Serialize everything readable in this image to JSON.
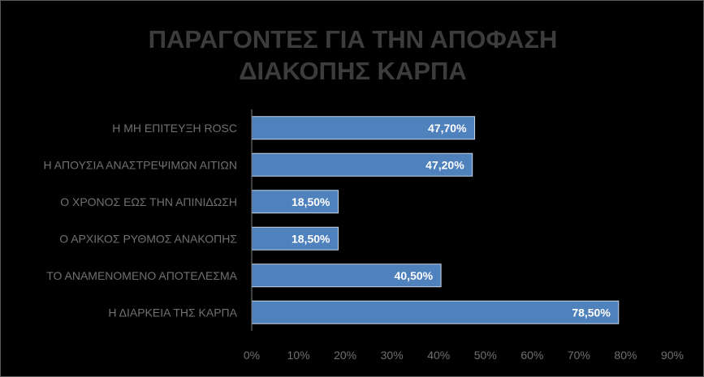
{
  "chart_data": {
    "type": "bar",
    "orientation": "horizontal",
    "title_lines": [
      "ΠΑΡΑΓΟΝΤΕΣ ΓΙΑ ΤΗΝ ΑΠΟΦΑΣΗ",
      "ΔΙΑΚΟΠΗΣ ΚΑΡΠΑ"
    ],
    "categories": [
      "Η ΜΗ ΕΠΙΤΕΥΞΗ ROSC",
      "Η ΑΠΟΥΣΙΑ ΑΝΑΣΤΡΕΨΙΜΩΝ ΑΙΤΙΩΝ",
      "Ο ΧΡΟΝΟΣ ΕΩΣ ΤΗΝ ΑΠΙΝΙΔΩΣΗ",
      "Ο ΑΡΧΙΚΟΣ ΡΥΘΜΟΣ ΑΝΑΚΟΠΗΣ",
      "ΤΟ ΑΝΑΜΕΝΟΜΕΝΟ ΑΠΟΤΕΛΕΣΜΑ",
      "Η ΔΙΑΡΚΕΙΑ ΤΗΣ ΚΑΡΠΑ"
    ],
    "values": [
      47.7,
      47.2,
      18.5,
      18.5,
      40.5,
      78.5
    ],
    "data_labels": [
      "47,70%",
      "47,20%",
      "18,50%",
      "18,50%",
      "40,50%",
      "78,50%"
    ],
    "xlim": [
      0,
      90
    ],
    "x_ticks": [
      0,
      10,
      20,
      30,
      40,
      50,
      60,
      70,
      80,
      90
    ],
    "x_tick_labels": [
      "0%",
      "10%",
      "20%",
      "30%",
      "40%",
      "50%",
      "60%",
      "70%",
      "80%",
      "90%"
    ],
    "grid": false,
    "legend": "none",
    "colors": {
      "background": "#000000",
      "bar_fill": "#4f81bd",
      "bar_stroke": "#c8d6e8",
      "title": "#3c3c3c",
      "axis_text": "#707070",
      "axis_line": "#808080",
      "frame": "#5a5a5a"
    }
  }
}
